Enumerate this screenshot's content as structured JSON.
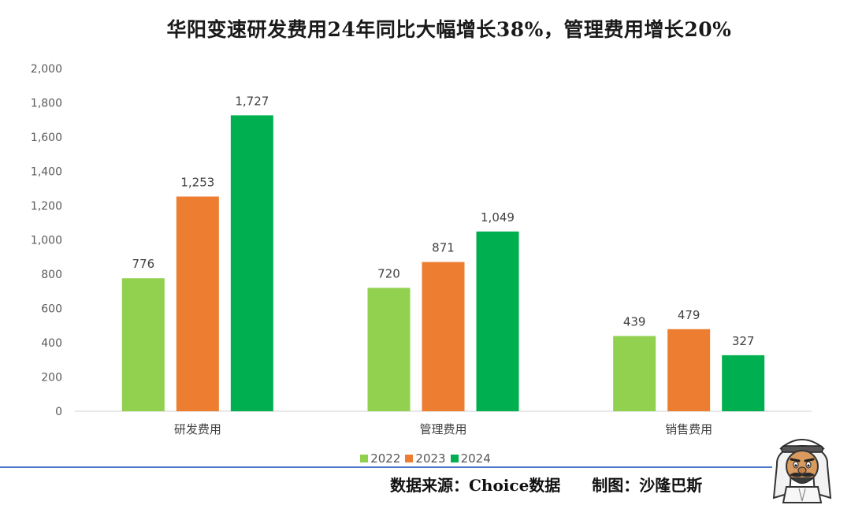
{
  "chart_data": {
    "type": "bar",
    "title": "华阳变速研发费用24年同比大幅增长38%，管理费用增长20%",
    "categories": [
      "研发费用",
      "管理费用",
      "销售费用"
    ],
    "series": [
      {
        "name": "2022",
        "values": [
          776,
          720,
          439
        ]
      },
      {
        "name": "2023",
        "values": [
          1253,
          871,
          479
        ]
      },
      {
        "name": "2024",
        "values": [
          1727,
          1049,
          327
        ]
      }
    ],
    "data_labels": [
      [
        "776",
        "720",
        "439"
      ],
      [
        "1,253",
        "871",
        "479"
      ],
      [
        "1,727",
        "1,049",
        "327"
      ]
    ],
    "ylim": [
      0,
      2000
    ],
    "yticks": [
      0,
      200,
      400,
      600,
      800,
      1000,
      1200,
      1400,
      1600,
      1800,
      2000
    ],
    "ytick_labels": [
      "0",
      "200",
      "400",
      "600",
      "800",
      "1,000",
      "1,200",
      "1,400",
      "1,600",
      "1,800",
      "2,000"
    ],
    "grid": false,
    "legend_position": "bottom",
    "xlabel": "",
    "ylabel": ""
  },
  "colors": {
    "2022": "#92d050",
    "2023": "#ed7d31",
    "2024": "#00b050"
  },
  "footer": {
    "credit": "数据来源：Choice数据　　制图：沙隆巴斯"
  },
  "mascot_icon": "cartoon-man-with-headscarf-icon"
}
